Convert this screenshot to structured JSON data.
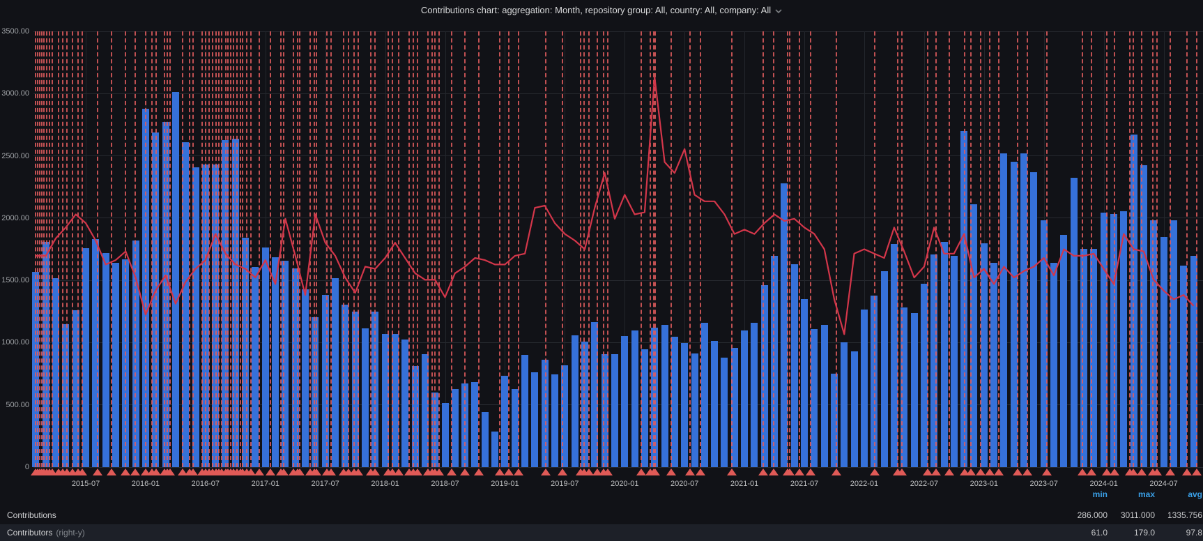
{
  "header": {
    "title": "Contributions chart: aggregation: Month, repository group: All, country: All, company: All"
  },
  "y_axis": {
    "tick_labels": [
      "3500.00",
      "3000.00",
      "2500.00",
      "2000.00",
      "1500.00",
      "1000.00",
      "500.00",
      "0"
    ],
    "tick_values": [
      3500,
      3000,
      2500,
      2000,
      1500,
      1000,
      500,
      0
    ]
  },
  "x_axis": {
    "tick_labels": [
      "2015-07",
      "2016-01",
      "2016-07",
      "2017-01",
      "2017-07",
      "2018-01",
      "2018-07",
      "2019-01",
      "2019-07",
      "2020-01",
      "2020-07",
      "2021-01",
      "2021-07",
      "2022-01",
      "2022-07",
      "2023-01",
      "2023-07",
      "2024-01",
      "2024-07"
    ],
    "tick_month_index": [
      5,
      11,
      17,
      23,
      29,
      35,
      41,
      47,
      53,
      59,
      65,
      71,
      77,
      83,
      89,
      95,
      101,
      107,
      113
    ]
  },
  "legend": {
    "columns": [
      "min",
      "max",
      "avg"
    ],
    "rows": [
      {
        "label": "Contributions",
        "suffix": "",
        "min": "286.000",
        "max": "3011.000",
        "avg": "1335.756"
      },
      {
        "label": "Contributors",
        "suffix": "(right-y)",
        "min": "61.0",
        "max": "179.0",
        "avg": "97.8"
      }
    ]
  },
  "chart_data": {
    "type": "bar",
    "start_month": "2015-02",
    "months_count": 117,
    "left_axis_range": [
      0,
      3500
    ],
    "right_axis_range": [
      0,
      200
    ],
    "grid": true,
    "series": [
      {
        "name": "Contributions",
        "type": "bar",
        "axis": "left",
        "color": "#3671d9",
        "min": 286.0,
        "max": 3011.0,
        "avg": 1335.756,
        "values": [
          1570,
          1810,
          1520,
          1150,
          1260,
          1760,
          1830,
          1720,
          1640,
          1670,
          1820,
          2880,
          2690,
          2770,
          3011,
          2610,
          2410,
          2430,
          2430,
          2625,
          2640,
          1840,
          1605,
          1765,
          1685,
          1660,
          1595,
          1430,
          1205,
          1385,
          1520,
          1305,
          1250,
          1115,
          1250,
          1070,
          1070,
          1025,
          810,
          905,
          600,
          515,
          630,
          670,
          685,
          440,
          286,
          735,
          625,
          900,
          760,
          860,
          745,
          820,
          1060,
          1010,
          1165,
          910,
          910,
          1055,
          1095,
          945,
          1120,
          1140,
          1045,
          995,
          915,
          1160,
          1015,
          880,
          955,
          1095,
          1160,
          1460,
          1695,
          2280,
          1630,
          1350,
          1110,
          1140,
          750,
          1000,
          930,
          1265,
          1380,
          1575,
          1790,
          1280,
          1235,
          1475,
          1710,
          1810,
          1695,
          2700,
          2110,
          1795,
          1640,
          2520,
          2455,
          2520,
          2370,
          1985,
          1640,
          1865,
          2325,
          1755,
          1755,
          2045,
          2035,
          2055,
          2670,
          2425,
          1985,
          1850,
          1985,
          1620,
          1695
        ]
      },
      {
        "name": "Contributors",
        "type": "line",
        "axis": "right",
        "color": "#d3364a",
        "min": 61.0,
        "max": 179.0,
        "avg": 97.8,
        "values": [
          97,
          97,
          105,
          110,
          116,
          112,
          104,
          93,
          95,
          99,
          87,
          70,
          81,
          88,
          75,
          85,
          91,
          95,
          107,
          98,
          93,
          91,
          87,
          95,
          84,
          114,
          97,
          79,
          116,
          103,
          97,
          87,
          80,
          92,
          91,
          96,
          103,
          96,
          89,
          86,
          86,
          78,
          89,
          92,
          96,
          95,
          93,
          93,
          97,
          98,
          119,
          120,
          112,
          107,
          104,
          100,
          119,
          135,
          114,
          125,
          116,
          117,
          179,
          140,
          135,
          146,
          125,
          122,
          122,
          116,
          107,
          109,
          107,
          112,
          116,
          113,
          114,
          110,
          107,
          100,
          77,
          61,
          98,
          100,
          98,
          96,
          110,
          99,
          87,
          92,
          110,
          98,
          98,
          107,
          87,
          91,
          84,
          92,
          87,
          90,
          92,
          96,
          88,
          100,
          97,
          97,
          98,
          91,
          84,
          107,
          100,
          99,
          86,
          81,
          77,
          79,
          74
        ]
      }
    ],
    "annotations_color": "#e25d5e",
    "annotations_months": [
      0,
      0.2,
      0.4,
      0.6,
      0.8,
      1.1,
      1.4,
      1.65,
      2.3,
      2.7,
      3.1,
      3.7,
      4.2,
      4.65,
      6.2,
      7.6,
      9.0,
      9.95,
      11.0,
      11.6,
      12.05,
      12.9,
      13.2,
      13.45,
      14.7,
      15.4,
      15.75,
      16.65,
      17.0,
      17.35,
      17.7,
      18.05,
      18.35,
      18.6,
      19.05,
      19.25,
      19.55,
      19.8,
      20.15,
      20.5,
      20.7,
      21.15,
      21.55,
      22.4,
      23.5,
      24.55,
      24.85,
      25.8,
      26.25,
      26.45,
      27.5,
      27.9,
      28.1,
      29.15,
      29.6,
      30.85,
      31.35,
      31.9,
      32.3,
      33.55,
      34.0,
      35.3,
      35.75,
      36.35,
      37.4,
      37.85,
      38.25,
      39.3,
      39.7,
      40.0,
      40.4,
      41.65,
      43.0,
      44.4,
      46.5,
      47.4,
      48.35,
      51.1,
      52.75,
      54.6,
      54.95,
      55.4,
      56.25,
      56.9,
      57.3,
      60.65,
      61.55,
      61.9,
      62.05,
      63.65,
      65.55,
      66.6,
      69.75,
      72.9,
      73.9,
      75.3,
      75.55,
      76.5,
      77.65,
      80.2,
      84.05,
      86.35,
      86.8,
      89.35,
      90.2,
      91.5,
      93.05,
      93.7,
      94.65,
      95.55,
      96.5,
      98.35,
      99.35,
      101.3,
      104.85,
      105.75,
      107.3,
      108.05,
      109.6,
      109.95,
      110.8,
      111.9,
      112.35,
      113.65,
      115.35,
      116.3
    ]
  },
  "layout_colors": {
    "background": "#111217",
    "grid": "#272a30",
    "legend_header": "#3aa0e8",
    "row_highlight": "#1d2028"
  }
}
